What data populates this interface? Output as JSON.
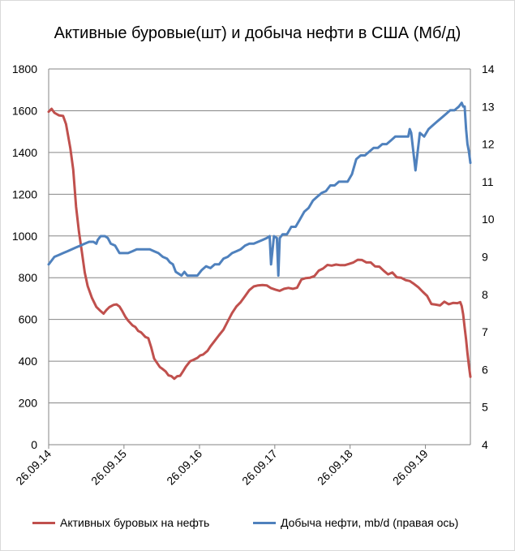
{
  "chart_data": {
    "type": "line",
    "title": "Активные буровые(шт) и добыча нефти в США (Мб/д)",
    "x_ticks": [
      "26.09.14",
      "26.09.15",
      "26.09.16",
      "26.09.17",
      "26.09.18",
      "26.09.19"
    ],
    "x_range": [
      "2014-09-26",
      "2020-05-01"
    ],
    "y_left": {
      "ticks": [
        "0",
        "200",
        "400",
        "600",
        "800",
        "1000",
        "1200",
        "1400",
        "1600",
        "1800"
      ],
      "lim": [
        0,
        1800
      ]
    },
    "y_right": {
      "ticks": [
        "4",
        "5",
        "6",
        "7",
        "8",
        "9",
        "10",
        "11",
        "12",
        "13",
        "14"
      ],
      "lim": [
        4,
        14
      ]
    },
    "grid": true,
    "legend_position": "bottom",
    "series": [
      {
        "name": "Активных буровых на нефть",
        "axis": "left",
        "color": "#c0504d",
        "x": [
          "2014-09-26",
          "2014-10-10",
          "2014-10-24",
          "2014-11-14",
          "2014-12-05",
          "2014-12-19",
          "2015-01-09",
          "2015-01-23",
          "2015-02-06",
          "2015-02-20",
          "2015-03-06",
          "2015-03-20",
          "2015-04-03",
          "2015-04-24",
          "2015-05-15",
          "2015-06-05",
          "2015-06-19",
          "2015-07-03",
          "2015-07-17",
          "2015-08-07",
          "2015-08-21",
          "2015-09-04",
          "2015-09-18",
          "2015-10-02",
          "2015-10-16",
          "2015-11-06",
          "2015-11-20",
          "2015-12-04",
          "2015-12-18",
          "2016-01-08",
          "2016-01-22",
          "2016-02-05",
          "2016-02-19",
          "2016-03-04",
          "2016-03-18",
          "2016-04-01",
          "2016-04-15",
          "2016-04-29",
          "2016-05-13",
          "2016-05-27",
          "2016-06-10",
          "2016-06-24",
          "2016-07-08",
          "2016-07-22",
          "2016-08-12",
          "2016-08-26",
          "2016-09-16",
          "2016-09-30",
          "2016-10-14",
          "2016-11-04",
          "2016-11-18",
          "2016-12-09",
          "2016-12-30",
          "2017-01-20",
          "2017-02-10",
          "2017-03-03",
          "2017-03-24",
          "2017-04-14",
          "2017-05-05",
          "2017-05-26",
          "2017-06-16",
          "2017-07-07",
          "2017-07-28",
          "2017-08-18",
          "2017-09-08",
          "2017-09-29",
          "2017-10-20",
          "2017-11-10",
          "2017-12-01",
          "2017-12-22",
          "2018-01-12",
          "2018-02-02",
          "2018-02-23",
          "2018-03-16",
          "2018-04-06",
          "2018-04-27",
          "2018-05-18",
          "2018-06-08",
          "2018-06-29",
          "2018-07-20",
          "2018-08-10",
          "2018-08-31",
          "2018-09-21",
          "2018-10-12",
          "2018-11-02",
          "2018-11-23",
          "2018-12-14",
          "2019-01-04",
          "2019-01-25",
          "2019-02-15",
          "2019-03-08",
          "2019-03-29",
          "2019-04-19",
          "2019-05-10",
          "2019-05-31",
          "2019-06-21",
          "2019-07-12",
          "2019-08-02",
          "2019-08-23",
          "2019-09-13",
          "2019-10-04",
          "2019-10-25",
          "2019-11-15",
          "2019-12-06",
          "2019-12-27",
          "2020-01-17",
          "2020-02-07",
          "2020-02-28",
          "2020-03-13",
          "2020-03-20",
          "2020-03-27",
          "2020-04-03",
          "2020-04-10",
          "2020-04-17",
          "2020-04-24",
          "2020-05-01"
        ],
        "values": [
          1595,
          1609,
          1590,
          1578,
          1575,
          1536,
          1421,
          1317,
          1140,
          1019,
          922,
          825,
          760,
          703,
          660,
          640,
          628,
          645,
          659,
          670,
          672,
          662,
          640,
          614,
          595,
          572,
          564,
          545,
          538,
          516,
          510,
          467,
          413,
          392,
          372,
          362,
          351,
          332,
          328,
          316,
          328,
          330,
          351,
          374,
          400,
          406,
          416,
          428,
          432,
          450,
          471,
          498,
          525,
          551,
          591,
          631,
          662,
          683,
          712,
          741,
          758,
          763,
          765,
          763,
          750,
          743,
          737,
          747,
          751,
          747,
          752,
          791,
          798,
          800,
          808,
          834,
          844,
          861,
          858,
          863,
          860,
          860,
          866,
          873,
          886,
          885,
          873,
          873,
          854,
          853,
          833,
          816,
          825,
          802,
          800,
          789,
          784,
          770,
          754,
          733,
          713,
          674,
          671,
          667,
          685,
          673,
          679,
          678,
          683,
          664,
          624,
          562,
          504,
          438,
          378,
          325
        ]
      },
      {
        "name": "Добыча нефти, mb/d (правая ось)",
        "axis": "right",
        "color": "#4f81bd",
        "x": [
          "2014-09-26",
          "2014-10-10",
          "2014-10-24",
          "2014-11-14",
          "2014-12-05",
          "2014-12-26",
          "2015-01-16",
          "2015-02-06",
          "2015-02-27",
          "2015-03-20",
          "2015-04-10",
          "2015-05-01",
          "2015-05-15",
          "2015-05-22",
          "2015-06-05",
          "2015-06-26",
          "2015-07-10",
          "2015-07-24",
          "2015-08-14",
          "2015-09-04",
          "2015-09-25",
          "2015-10-16",
          "2015-11-06",
          "2015-11-27",
          "2015-12-18",
          "2016-01-08",
          "2016-01-29",
          "2016-02-19",
          "2016-03-11",
          "2016-04-01",
          "2016-04-22",
          "2016-05-06",
          "2016-05-20",
          "2016-06-03",
          "2016-06-17",
          "2016-07-01",
          "2016-07-15",
          "2016-07-29",
          "2016-08-12",
          "2016-08-26",
          "2016-09-16",
          "2016-10-07",
          "2016-10-28",
          "2016-11-18",
          "2016-12-09",
          "2016-12-30",
          "2017-01-20",
          "2017-02-10",
          "2017-03-03",
          "2017-03-24",
          "2017-04-14",
          "2017-05-05",
          "2017-05-26",
          "2017-06-16",
          "2017-07-07",
          "2017-07-28",
          "2017-08-18",
          "2017-09-01",
          "2017-09-08",
          "2017-09-22",
          "2017-10-06",
          "2017-10-13",
          "2017-10-20",
          "2017-11-03",
          "2017-11-24",
          "2017-12-15",
          "2018-01-05",
          "2018-01-26",
          "2018-02-16",
          "2018-03-09",
          "2018-03-30",
          "2018-04-20",
          "2018-05-11",
          "2018-06-01",
          "2018-06-22",
          "2018-07-13",
          "2018-08-03",
          "2018-08-24",
          "2018-09-14",
          "2018-10-05",
          "2018-10-26",
          "2018-11-16",
          "2018-12-07",
          "2018-12-28",
          "2019-01-18",
          "2019-02-08",
          "2019-03-01",
          "2019-03-22",
          "2019-04-12",
          "2019-05-03",
          "2019-05-24",
          "2019-06-14",
          "2019-07-05",
          "2019-07-12",
          "2019-07-19",
          "2019-08-09",
          "2019-08-30",
          "2019-09-20",
          "2019-10-11",
          "2019-11-01",
          "2019-11-22",
          "2019-12-13",
          "2020-01-03",
          "2020-01-24",
          "2020-02-14",
          "2020-03-06",
          "2020-03-20",
          "2020-03-27",
          "2020-04-03",
          "2020-04-10",
          "2020-04-17",
          "2020-04-24",
          "2020-05-01"
        ],
        "values": [
          8.8,
          8.9,
          9.0,
          9.05,
          9.1,
          9.15,
          9.2,
          9.25,
          9.3,
          9.35,
          9.4,
          9.4,
          9.35,
          9.45,
          9.55,
          9.55,
          9.5,
          9.35,
          9.3,
          9.1,
          9.1,
          9.1,
          9.15,
          9.2,
          9.2,
          9.2,
          9.2,
          9.15,
          9.1,
          9.0,
          8.95,
          8.85,
          8.8,
          8.6,
          8.55,
          8.5,
          8.6,
          8.5,
          8.5,
          8.5,
          8.5,
          8.65,
          8.75,
          8.7,
          8.8,
          8.8,
          8.95,
          9.0,
          9.1,
          9.15,
          9.2,
          9.3,
          9.35,
          9.35,
          9.4,
          9.45,
          9.5,
          9.55,
          8.8,
          9.55,
          9.5,
          8.5,
          9.5,
          9.6,
          9.6,
          9.8,
          9.8,
          10.0,
          10.2,
          10.3,
          10.5,
          10.6,
          10.7,
          10.75,
          10.9,
          10.9,
          11.0,
          11.0,
          11.0,
          11.2,
          11.6,
          11.7,
          11.7,
          11.8,
          11.9,
          11.9,
          12.0,
          12.0,
          12.1,
          12.2,
          12.2,
          12.2,
          12.2,
          12.4,
          12.3,
          11.3,
          12.3,
          12.2,
          12.4,
          12.5,
          12.6,
          12.7,
          12.8,
          12.9,
          12.9,
          13.0,
          13.1,
          13.0,
          13.0,
          12.4,
          12.0,
          11.8,
          11.5
        ]
      }
    ]
  }
}
